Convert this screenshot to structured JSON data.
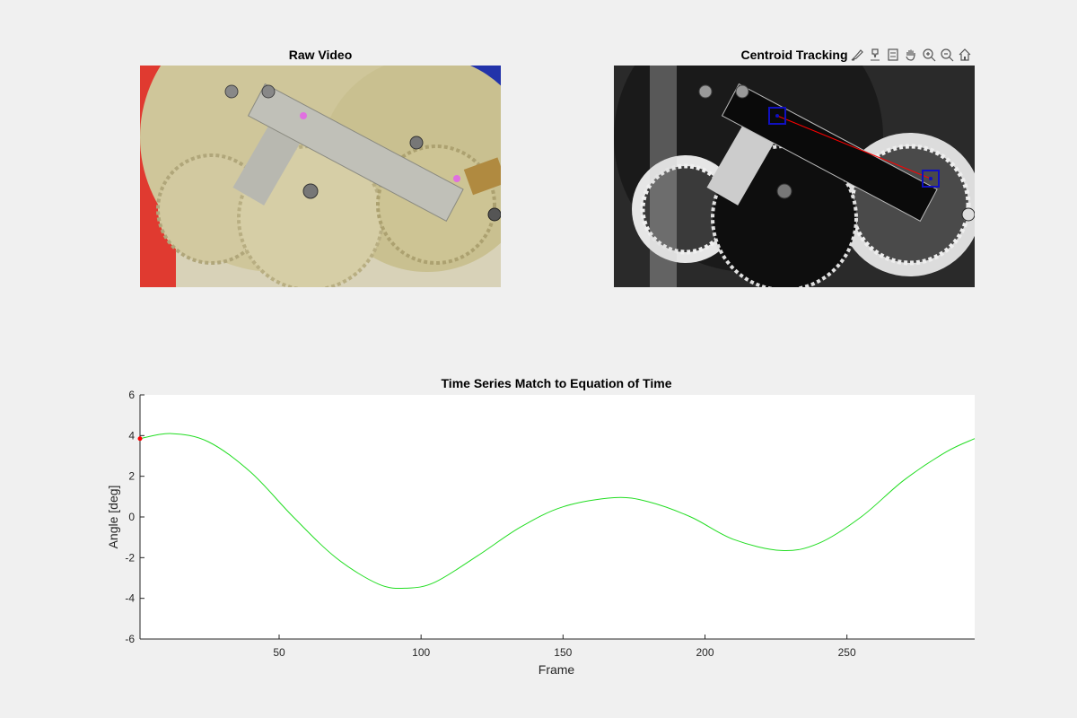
{
  "figure": {
    "raw_title": "Raw Video",
    "tracking_title": "Centroid Tracking"
  },
  "toolbar": {
    "icons": [
      "brush-icon",
      "datatip-icon",
      "legend-icon",
      "pan-icon",
      "zoom-in-icon",
      "zoom-out-icon",
      "home-icon"
    ]
  },
  "colors": {
    "series": "#22dd22",
    "marker": "#ff0000",
    "track_line": "#ff0000",
    "track_box": "#1010c0",
    "tracked_point_raw": "#e070e0"
  },
  "chart_data": {
    "type": "line",
    "title": "Time Series Match to Equation of Time",
    "xlabel": "Frame",
    "ylabel": "Angle [deg]",
    "xlim": [
      1,
      295
    ],
    "ylim": [
      -6,
      6
    ],
    "xticks": [
      50,
      100,
      150,
      200,
      250
    ],
    "yticks": [
      -6,
      -4,
      -2,
      0,
      2,
      4,
      6
    ],
    "grid": false,
    "series": [
      {
        "x": [
          1,
          12,
          25,
          40,
          55,
          70,
          85,
          95,
          105,
          120,
          135,
          150,
          168,
          180,
          195,
          210,
          227,
          240,
          255,
          270,
          285,
          295
        ],
        "values": [
          3.85,
          4.1,
          3.7,
          2.2,
          0.0,
          -2.0,
          -3.3,
          -3.5,
          -3.2,
          -1.9,
          -0.5,
          0.5,
          0.95,
          0.75,
          0.0,
          -1.1,
          -1.65,
          -1.3,
          0.0,
          1.8,
          3.2,
          3.85
        ]
      }
    ],
    "current_point": {
      "x": 1,
      "y": 3.85
    }
  }
}
